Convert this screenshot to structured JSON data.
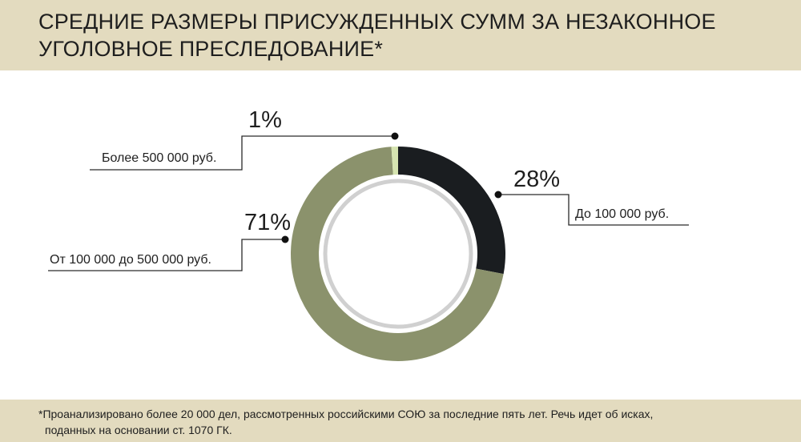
{
  "header": {
    "title": "СРЕДНИЕ РАЗМЕРЫ ПРИСУЖДЕННЫХ СУММ ЗА НЕЗАКОННОЕ УГОЛОВНОЕ ПРЕСЛЕДОВАНИЕ*"
  },
  "footer": {
    "note_line1": "*Проанализировано более 20 000 дел, рассмотренных российскими СОЮ за последние пять лет. Речь идет об исках,",
    "note_line2": "поданных на основании ст. 1070 ГК."
  },
  "chart_data": {
    "type": "pie",
    "style": "donut",
    "title": "СРЕДНИЕ РАЗМЕРЫ ПРИСУЖДЕННЫХ СУММ ЗА НЕЗАКОННОЕ УГОЛОВНОЕ ПРЕСЛЕДОВАНИЕ*",
    "slices": [
      {
        "label": "До 100 000 руб.",
        "value": 28,
        "value_label": "28%",
        "color": "#1a1d20"
      },
      {
        "label": "От 100 000 до 500 000 руб.",
        "value": 71,
        "value_label": "71%",
        "color": "#8b926c"
      },
      {
        "label": "Более 500 000 руб.",
        "value": 1,
        "value_label": "1%",
        "color": "#d6e4b0"
      }
    ],
    "legend": "none",
    "inner_ring_color": "#d0d0d0"
  }
}
